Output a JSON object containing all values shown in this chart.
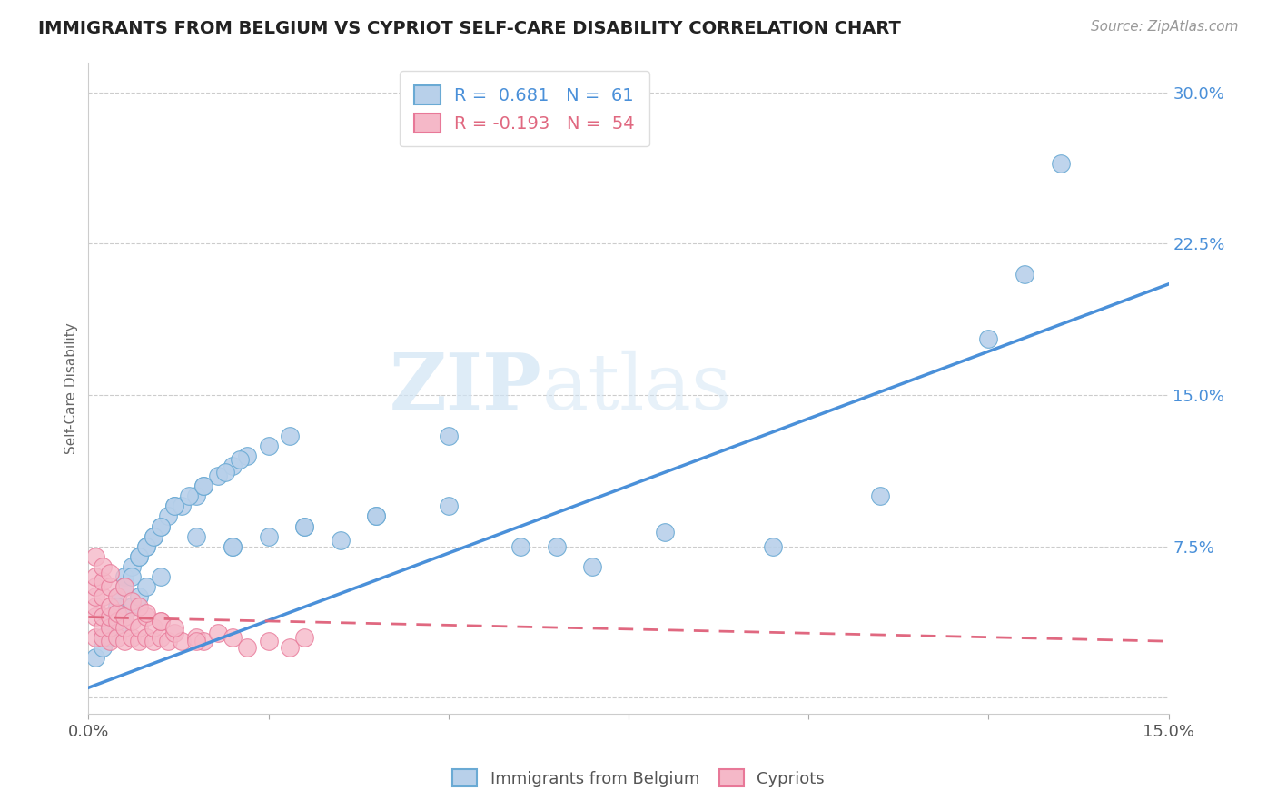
{
  "title": "IMMIGRANTS FROM BELGIUM VS CYPRIOT SELF-CARE DISABILITY CORRELATION CHART",
  "source": "Source: ZipAtlas.com",
  "ylabel": "Self-Care Disability",
  "xlim": [
    0.0,
    0.15
  ],
  "ylim": [
    -0.008,
    0.315
  ],
  "blue_R": 0.681,
  "blue_N": 61,
  "pink_R": -0.193,
  "pink_N": 54,
  "blue_color": "#b8d0ea",
  "blue_edge_color": "#6aaad4",
  "blue_line_color": "#4a90d9",
  "pink_color": "#f5b8c8",
  "pink_edge_color": "#e87898",
  "pink_line_color": "#e06880",
  "legend_blue_label": "Immigrants from Belgium",
  "legend_pink_label": "Cypriots",
  "watermark_zip": "ZIP",
  "watermark_atlas": "atlas",
  "blue_scatter_x": [
    0.005,
    0.008,
    0.01,
    0.012,
    0.015,
    0.018,
    0.02,
    0.022,
    0.025,
    0.028,
    0.003,
    0.004,
    0.006,
    0.007,
    0.009,
    0.011,
    0.013,
    0.016,
    0.019,
    0.021,
    0.002,
    0.003,
    0.004,
    0.005,
    0.006,
    0.007,
    0.008,
    0.009,
    0.01,
    0.012,
    0.014,
    0.016,
    0.02,
    0.025,
    0.03,
    0.035,
    0.04,
    0.05,
    0.06,
    0.07,
    0.001,
    0.002,
    0.003,
    0.004,
    0.005,
    0.006,
    0.007,
    0.008,
    0.01,
    0.015,
    0.02,
    0.03,
    0.04,
    0.05,
    0.065,
    0.08,
    0.095,
    0.11,
    0.125,
    0.13,
    0.135
  ],
  "blue_scatter_y": [
    0.06,
    0.075,
    0.085,
    0.095,
    0.1,
    0.11,
    0.115,
    0.12,
    0.125,
    0.13,
    0.04,
    0.05,
    0.065,
    0.07,
    0.08,
    0.09,
    0.095,
    0.105,
    0.112,
    0.118,
    0.03,
    0.035,
    0.045,
    0.055,
    0.06,
    0.07,
    0.075,
    0.08,
    0.085,
    0.095,
    0.1,
    0.105,
    0.075,
    0.08,
    0.085,
    0.078,
    0.09,
    0.13,
    0.075,
    0.065,
    0.02,
    0.025,
    0.03,
    0.035,
    0.04,
    0.045,
    0.05,
    0.055,
    0.06,
    0.08,
    0.075,
    0.085,
    0.09,
    0.095,
    0.075,
    0.082,
    0.075,
    0.1,
    0.178,
    0.21,
    0.265
  ],
  "pink_scatter_x": [
    0.001,
    0.001,
    0.001,
    0.001,
    0.001,
    0.002,
    0.002,
    0.002,
    0.002,
    0.003,
    0.003,
    0.003,
    0.003,
    0.004,
    0.004,
    0.004,
    0.005,
    0.005,
    0.005,
    0.006,
    0.006,
    0.007,
    0.007,
    0.008,
    0.008,
    0.009,
    0.009,
    0.01,
    0.01,
    0.011,
    0.012,
    0.013,
    0.015,
    0.016,
    0.018,
    0.02,
    0.022,
    0.025,
    0.028,
    0.03,
    0.001,
    0.001,
    0.002,
    0.002,
    0.003,
    0.003,
    0.004,
    0.005,
    0.006,
    0.007,
    0.008,
    0.01,
    0.012,
    0.015
  ],
  "pink_scatter_y": [
    0.03,
    0.04,
    0.045,
    0.05,
    0.055,
    0.03,
    0.035,
    0.04,
    0.05,
    0.028,
    0.035,
    0.04,
    0.045,
    0.03,
    0.038,
    0.042,
    0.028,
    0.035,
    0.04,
    0.03,
    0.038,
    0.028,
    0.035,
    0.03,
    0.04,
    0.028,
    0.035,
    0.03,
    0.038,
    0.028,
    0.032,
    0.028,
    0.03,
    0.028,
    0.032,
    0.03,
    0.025,
    0.028,
    0.025,
    0.03,
    0.06,
    0.07,
    0.058,
    0.065,
    0.055,
    0.062,
    0.05,
    0.055,
    0.048,
    0.045,
    0.042,
    0.038,
    0.035,
    0.028
  ],
  "blue_trendline_x": [
    0.0,
    0.15
  ],
  "blue_trendline_y": [
    0.005,
    0.205
  ],
  "pink_trendline_x": [
    0.0,
    0.15
  ],
  "pink_trendline_y": [
    0.04,
    0.028
  ]
}
